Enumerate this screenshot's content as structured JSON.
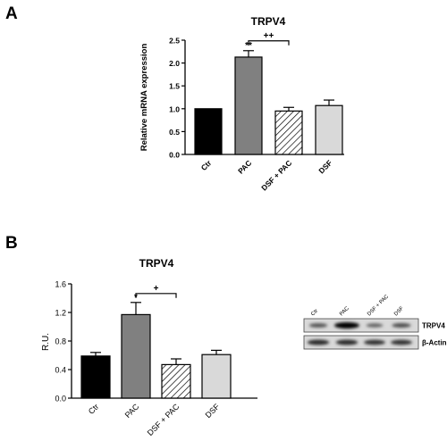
{
  "chart_data": [
    {
      "panel": "A",
      "type": "bar",
      "title": "TRPV4",
      "ylabel": "Relative mRNA expression",
      "xlabel": "",
      "categories": [
        "Ctr",
        "PAC",
        "DSF + PAC",
        "DSF"
      ],
      "values": [
        1.0,
        2.13,
        0.95,
        1.07
      ],
      "errors": [
        0.0,
        0.14,
        0.08,
        0.12
      ],
      "fills": [
        "solid-black",
        "solid-gray",
        "hatched",
        "solid-light-gray"
      ],
      "ylim": [
        0.0,
        2.5
      ],
      "yticks": [
        "0.0",
        "0.5",
        "1.0",
        "1.5",
        "2.0",
        "2.5"
      ],
      "annotations": [
        {
          "text": "**",
          "category": "PAC"
        },
        {
          "text": "++",
          "between": [
            "PAC",
            "DSF + PAC"
          ]
        }
      ]
    },
    {
      "panel": "B",
      "type": "bar",
      "title": "TRPV4",
      "ylabel": "R.U.",
      "xlabel": "",
      "categories": [
        "Ctr",
        "PAC",
        "DSF + PAC",
        "DSF"
      ],
      "values": [
        0.59,
        1.17,
        0.47,
        0.61
      ],
      "errors": [
        0.05,
        0.17,
        0.08,
        0.06
      ],
      "fills": [
        "solid-black",
        "solid-gray",
        "hatched",
        "solid-light-gray"
      ],
      "ylim": [
        0.0,
        1.6
      ],
      "yticks": [
        "0.0",
        "0.4",
        "0.8",
        "1.2",
        "1.6"
      ],
      "annotations": [
        {
          "text": "*",
          "category": "PAC"
        },
        {
          "text": "+",
          "between": [
            "PAC",
            "DSF + PAC"
          ]
        }
      ]
    }
  ],
  "colors": {
    "ctr": "#000000",
    "pac": "#808080",
    "dsf": "#d9d9d9",
    "axis": "#000000"
  },
  "blot": {
    "lanes": [
      "Ctr",
      "PAC",
      "DSF + PAC",
      "DSF"
    ],
    "rows": [
      {
        "label": "TRPV4",
        "intensity": [
          0.45,
          1.0,
          0.35,
          0.5
        ]
      },
      {
        "label": "β-Actin",
        "intensity": [
          0.75,
          0.75,
          0.7,
          0.7
        ]
      }
    ]
  }
}
